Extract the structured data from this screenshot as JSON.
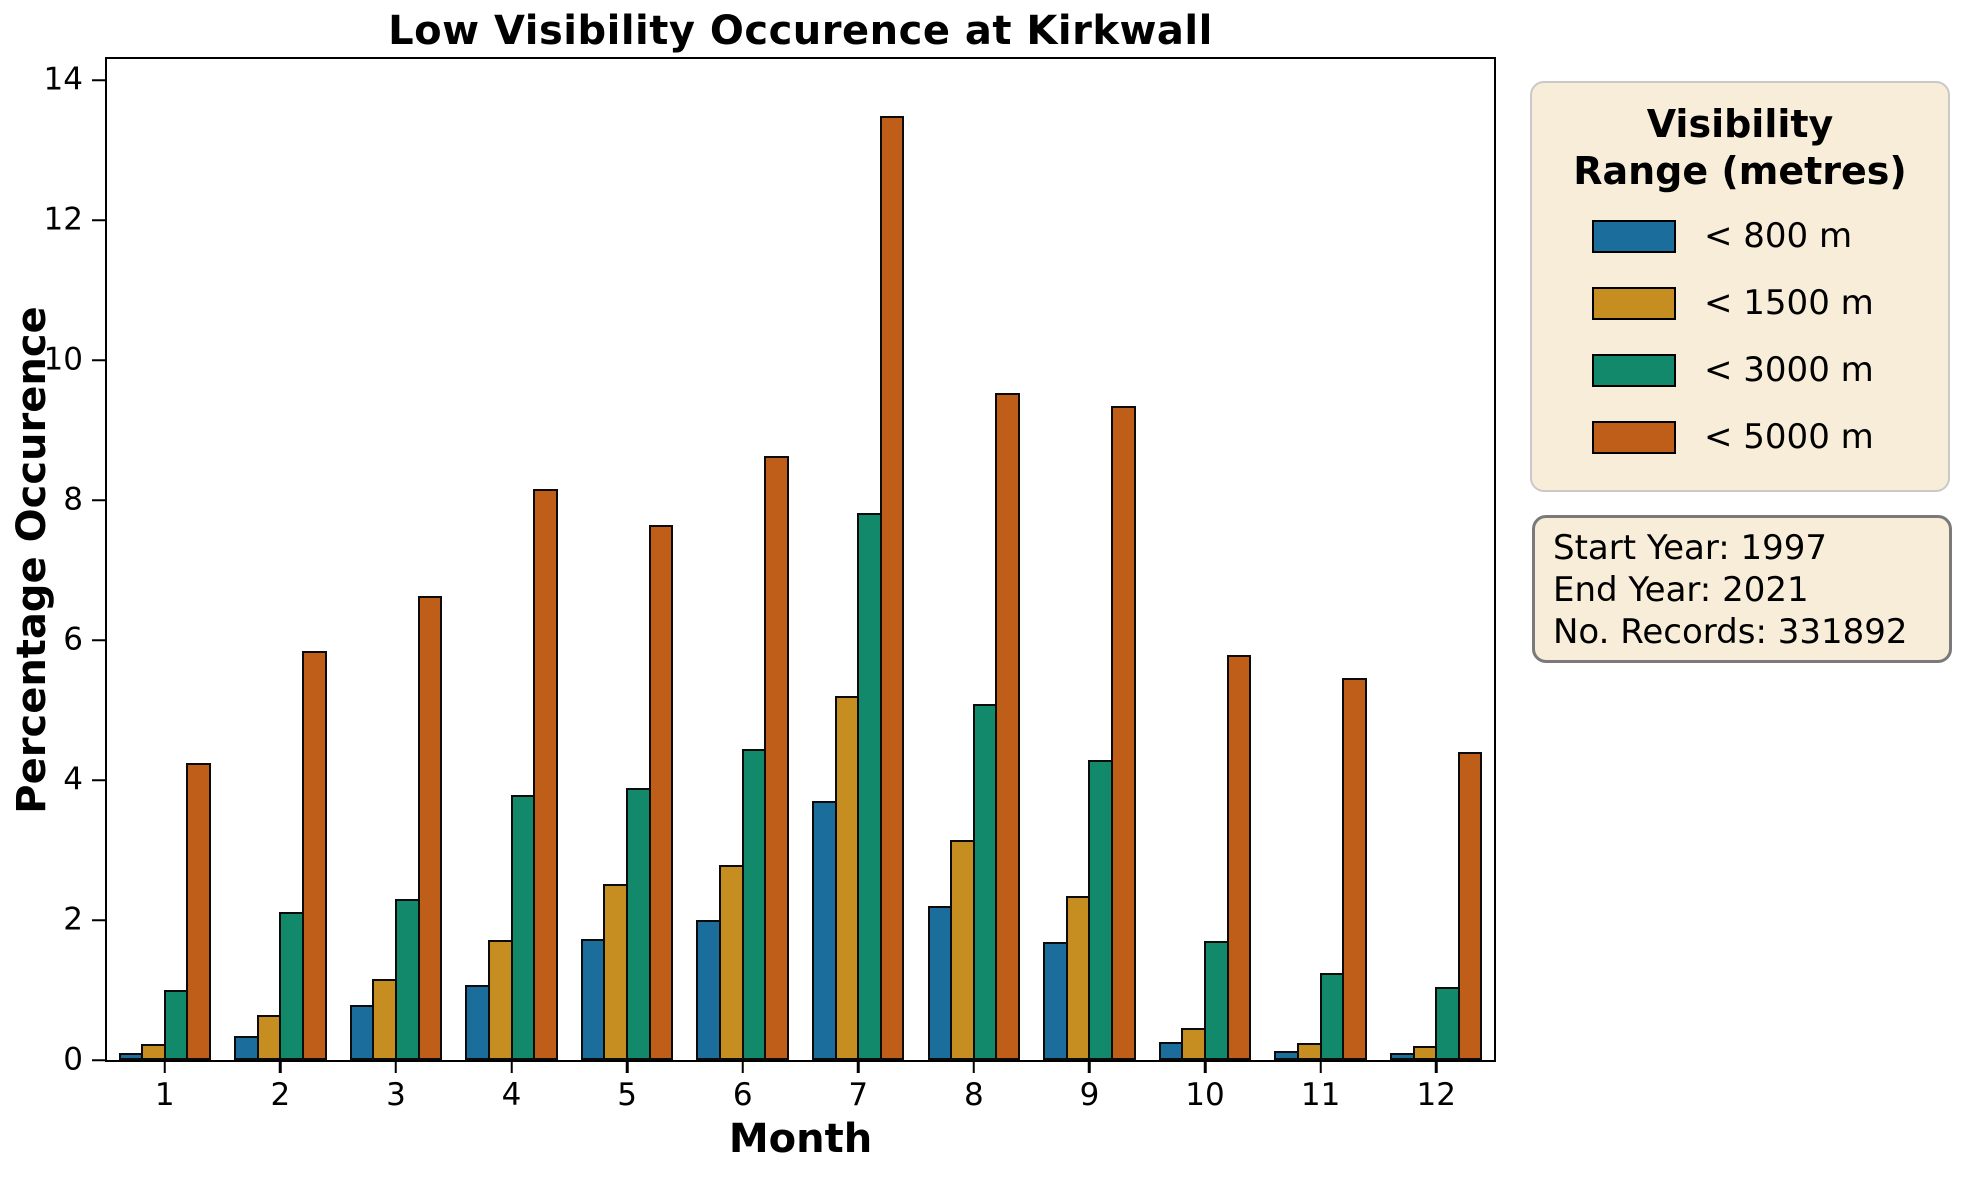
{
  "title": "Low Visibility Occurence at Kirkwall",
  "axes": {
    "xlabel": "Month",
    "ylabel": "Percentage Occurence",
    "yticks": [
      0,
      2,
      4,
      6,
      8,
      10,
      12,
      14
    ],
    "ymax": 14.3
  },
  "legend": {
    "title_line1": "Visibility",
    "title_line2": "Range (metres)"
  },
  "info_box": {
    "lines": [
      "Start Year: 1997",
      "End Year: 2021",
      "No. Records: 331892"
    ]
  },
  "chart_data": {
    "type": "bar",
    "title": "Low Visibility Occurence at Kirkwall",
    "xlabel": "Month",
    "ylabel": "Percentage Occurence",
    "categories": [
      "1",
      "2",
      "3",
      "4",
      "5",
      "6",
      "7",
      "8",
      "9",
      "10",
      "11",
      "12"
    ],
    "series": [
      {
        "name": "< 800 m",
        "color": "#1b6d9c",
        "values": [
          0.1,
          0.35,
          0.78,
          1.07,
          1.73,
          2.0,
          3.7,
          2.2,
          1.69,
          0.26,
          0.13,
          0.1
        ]
      },
      {
        "name": "< 1500 m",
        "color": "#c68e20",
        "values": [
          0.23,
          0.64,
          1.16,
          1.72,
          2.51,
          2.79,
          5.2,
          3.15,
          2.34,
          0.46,
          0.24,
          0.2
        ]
      },
      {
        "name": "< 3000 m",
        "color": "#13896b",
        "values": [
          1.0,
          2.12,
          2.3,
          3.78,
          3.89,
          4.45,
          7.81,
          5.08,
          4.28,
          1.7,
          1.24,
          1.05
        ]
      },
      {
        "name": "< 5000 m",
        "color": "#bf5e19",
        "values": [
          4.25,
          5.84,
          6.63,
          8.16,
          7.65,
          8.63,
          13.48,
          9.53,
          9.34,
          5.79,
          5.46,
          4.4
        ]
      }
    ],
    "ylim": [
      0,
      14.3
    ],
    "grid": false,
    "legend_position": "right",
    "bar_edge_color": "#0b0b0b"
  }
}
